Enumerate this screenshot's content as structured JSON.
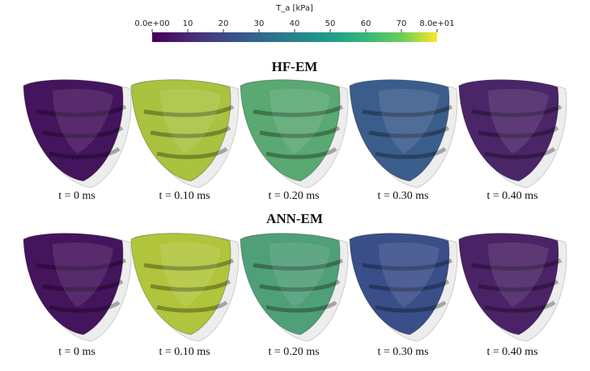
{
  "colorbar": {
    "title": "T_a [kPa]",
    "range": [
      0,
      80
    ],
    "ticks": [
      {
        "value": 0,
        "label": "0.0e+00"
      },
      10,
      20,
      30,
      40,
      50,
      60,
      70,
      {
        "value": 80,
        "label": "8.0e+01"
      }
    ]
  },
  "rows": [
    {
      "title": "HF-EM",
      "panels": [
        {
          "label": "t = 0 ms",
          "color": "#44145c"
        },
        {
          "label": "t = 0.10 ms",
          "color": "#a9c23f"
        },
        {
          "label": "t = 0.20 ms",
          "color": "#5aa872"
        },
        {
          "label": "t = 0.30 ms",
          "color": "#3b5d8c"
        },
        {
          "label": "t = 0.40 ms",
          "color": "#4a2568"
        }
      ]
    },
    {
      "title": "ANN-EM",
      "panels": [
        {
          "label": "t = 0 ms",
          "color": "#44145c"
        },
        {
          "label": "t = 0.10 ms",
          "color": "#b0c43c"
        },
        {
          "label": "t = 0.20 ms",
          "color": "#4f9f78"
        },
        {
          "label": "t = 0.30 ms",
          "color": "#3a4f89"
        },
        {
          "label": "t = 0.40 ms",
          "color": "#4a2266"
        }
      ]
    }
  ]
}
